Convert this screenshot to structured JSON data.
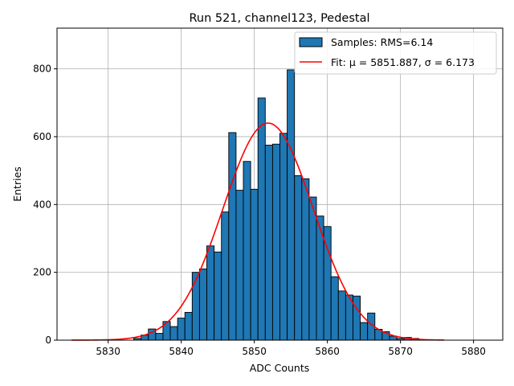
{
  "chart_data": {
    "type": "bar",
    "title": "Run 521, channel123, Pedestal",
    "xlabel": "ADC Counts",
    "ylabel": "Entries",
    "xlim": [
      5823,
      5884
    ],
    "ylim": [
      0,
      920
    ],
    "grid": true,
    "legend_position": "top-right",
    "x_ticks": [
      5830,
      5840,
      5850,
      5860,
      5870,
      5880
    ],
    "y_ticks": [
      0,
      200,
      400,
      600,
      800
    ],
    "histogram": {
      "name": "Samples: RMS=6.14",
      "color": "#1f77b4",
      "edge_color": "#000000",
      "bin_width": 1,
      "bins": [
        {
          "x": 5834,
          "count": 5
        },
        {
          "x": 5835,
          "count": 15
        },
        {
          "x": 5836,
          "count": 33
        },
        {
          "x": 5837,
          "count": 20
        },
        {
          "x": 5838,
          "count": 55
        },
        {
          "x": 5839,
          "count": 40
        },
        {
          "x": 5840,
          "count": 65
        },
        {
          "x": 5841,
          "count": 82
        },
        {
          "x": 5842,
          "count": 200
        },
        {
          "x": 5843,
          "count": 210
        },
        {
          "x": 5844,
          "count": 278
        },
        {
          "x": 5845,
          "count": 260
        },
        {
          "x": 5846,
          "count": 378
        },
        {
          "x": 5847,
          "count": 612
        },
        {
          "x": 5848,
          "count": 442
        },
        {
          "x": 5849,
          "count": 527
        },
        {
          "x": 5850,
          "count": 445
        },
        {
          "x": 5851,
          "count": 714
        },
        {
          "x": 5852,
          "count": 575
        },
        {
          "x": 5853,
          "count": 578
        },
        {
          "x": 5854,
          "count": 610
        },
        {
          "x": 5855,
          "count": 797
        },
        {
          "x": 5856,
          "count": 485
        },
        {
          "x": 5857,
          "count": 476
        },
        {
          "x": 5858,
          "count": 422
        },
        {
          "x": 5859,
          "count": 366
        },
        {
          "x": 5860,
          "count": 335
        },
        {
          "x": 5861,
          "count": 187
        },
        {
          "x": 5862,
          "count": 145
        },
        {
          "x": 5863,
          "count": 133
        },
        {
          "x": 5864,
          "count": 130
        },
        {
          "x": 5865,
          "count": 52
        },
        {
          "x": 5866,
          "count": 80
        },
        {
          "x": 5867,
          "count": 32
        },
        {
          "x": 5868,
          "count": 25
        },
        {
          "x": 5869,
          "count": 12
        },
        {
          "x": 5870,
          "count": 5
        },
        {
          "x": 5871,
          "count": 8
        },
        {
          "x": 5872,
          "count": 5
        }
      ]
    },
    "fit": {
      "label": "Fit: μ = 5851.887, σ = 6.173",
      "color": "#ff0000",
      "mu": 5851.887,
      "sigma": 6.173,
      "amplitude": 640,
      "x_range": [
        5825,
        5876
      ]
    }
  }
}
